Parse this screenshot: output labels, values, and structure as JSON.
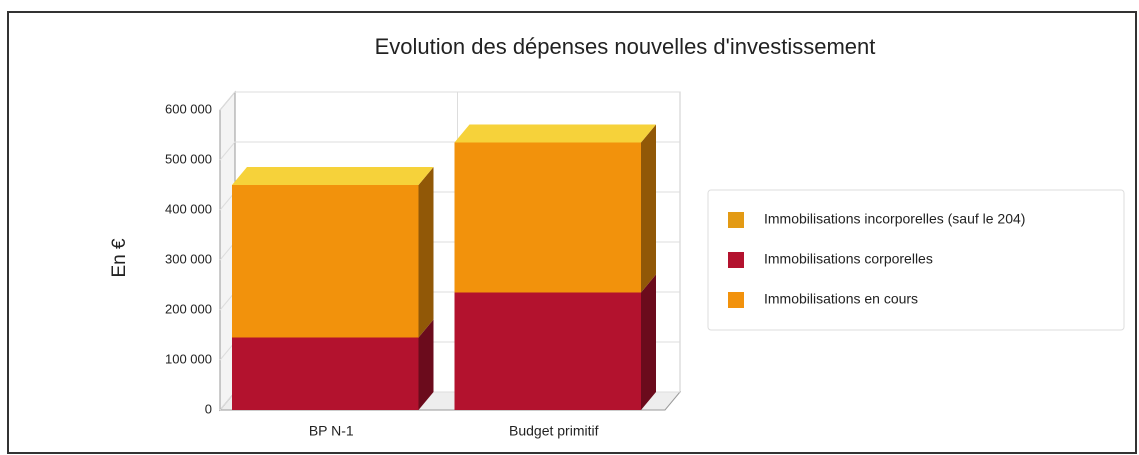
{
  "chart_data": {
    "type": "bar3d_stacked",
    "title": "Evolution des dépenses nouvelles d'investissement",
    "y_label": "En €",
    "categories": [
      "BP N-1",
      "Budget primitif"
    ],
    "series": [
      {
        "name": "Immobilisations incorporelles (sauf le 204)",
        "color": "#e39a14",
        "values": [
          0,
          0
        ]
      },
      {
        "name": "Immobilisations corporelles",
        "color": "#b3122e",
        "values": [
          145000,
          235000
        ]
      },
      {
        "name": "Immobilisations en cours",
        "color": "#f2920c",
        "values": [
          305000,
          300000
        ]
      }
    ],
    "ylim": [
      0,
      600000
    ],
    "yticks": [
      0,
      {
        "value": 100000,
        "label": "100 000"
      },
      {
        "value": 200000,
        "label": "200 000"
      },
      {
        "value": 300000,
        "label": "300 000"
      },
      {
        "value": 400000,
        "label": "400 000"
      },
      {
        "value": 500000,
        "label": "500 000"
      },
      {
        "value": 600000,
        "label": "600 000"
      }
    ],
    "grid": true,
    "legend": "right"
  }
}
